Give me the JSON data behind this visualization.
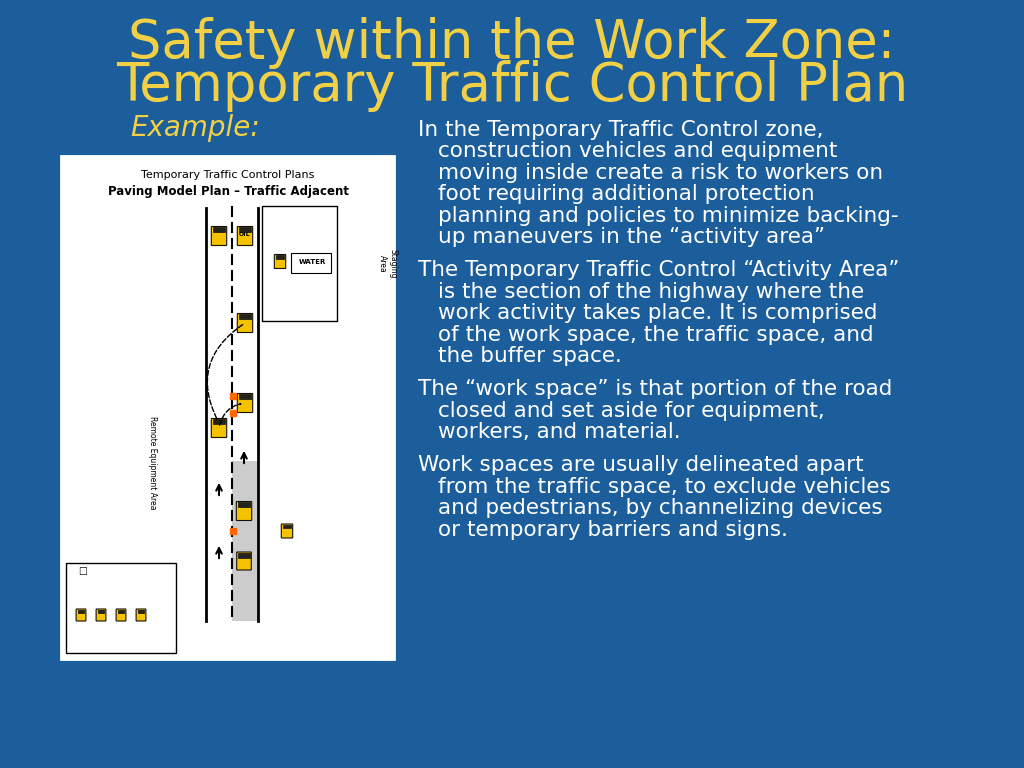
{
  "bg_color": "#1B5E9B",
  "title_line1": "Safety within the Work Zone:",
  "title_line2": "Temporary Traffic Control Plan",
  "title_color": "#F2D045",
  "title_fontsize": 38,
  "example_label": "Example:",
  "example_color": "#F2D045",
  "example_fontsize": 20,
  "text_color": "#FFFFFF",
  "body_fontsize": 15.5,
  "bullet1_first": "In the Temporary Traffic Control zone,",
  "bullet1_rest": "construction vehicles and equipment\nmoving inside create a risk to workers on\nfoot requiring additional protection\nplanning and policies to minimize backing-\nup maneuvers in the “activity area”",
  "bullet2_first": "The Temporary Traffic Control “Activity Area”",
  "bullet2_rest": "is the section of the highway where the\nwork activity takes place. It is comprised\nof the work space, the traffic space, and\nthe buffer space.",
  "bullet3_first": "The “work space” is that portion of the road",
  "bullet3_rest": "closed and set aside for equipment,\nworkers, and material.",
  "bullet4_first": "Work spaces are usually delineated apart",
  "bullet4_rest": "from the traffic space, to exclude vehicles\nand pedestrians, by channelizing devices\nor temporary barriers and signs.",
  "diagram_title1": "Temporary Traffic Control Plans",
  "diagram_title2": "Paving Model Plan – Traffic Adjacent",
  "diagram_bg": "#FFFFFF",
  "diagram_border": "#1B5E9B"
}
